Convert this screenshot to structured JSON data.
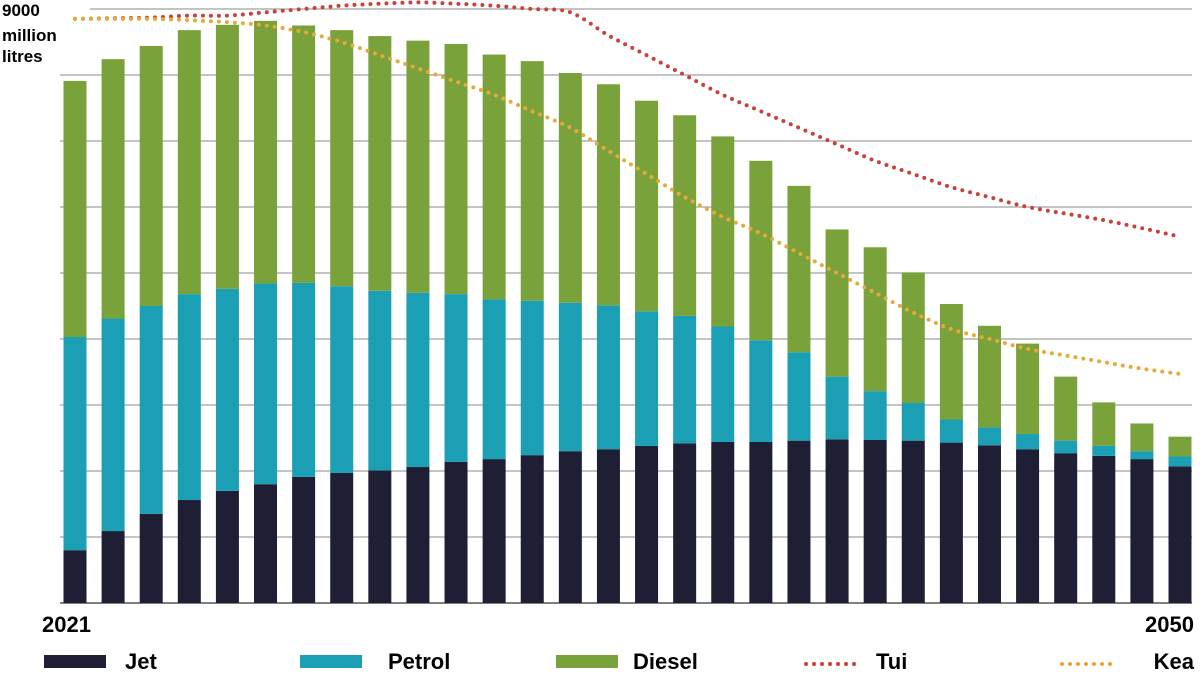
{
  "chart_data": {
    "type": "bar",
    "stacked": true,
    "ylabel_lines": [
      "9000",
      "million",
      "litres"
    ],
    "ylim": [
      0,
      9000
    ],
    "y_gridlines": [
      0,
      1000,
      2000,
      3000,
      4000,
      5000,
      6000,
      7000,
      8000,
      9000
    ],
    "grid": "horizontal",
    "x": [
      2021,
      2022,
      2023,
      2024,
      2025,
      2026,
      2027,
      2028,
      2029,
      2030,
      2031,
      2032,
      2033,
      2034,
      2035,
      2036,
      2037,
      2038,
      2039,
      2040,
      2041,
      2042,
      2043,
      2044,
      2045,
      2046,
      2047,
      2048,
      2049,
      2050
    ],
    "x_tick_labels": [
      {
        "x": 2021,
        "label": "2021"
      },
      {
        "x": 2050,
        "label": "2050"
      }
    ],
    "series": [
      {
        "name": "Jet",
        "kind": "bar",
        "color": "#1e1e35",
        "values": [
          800,
          1090,
          1350,
          1560,
          1700,
          1800,
          1910,
          1970,
          2010,
          2060,
          2140,
          2180,
          2240,
          2300,
          2330,
          2380,
          2420,
          2440,
          2440,
          2460,
          2480,
          2470,
          2460,
          2430,
          2390,
          2330,
          2270,
          2230,
          2180,
          2070
        ]
      },
      {
        "name": "Petrol",
        "kind": "bar",
        "color": "#1b9fb5",
        "values": [
          3230,
          3220,
          3150,
          3120,
          3060,
          3040,
          2940,
          2830,
          2720,
          2640,
          2540,
          2420,
          2340,
          2250,
          2180,
          2040,
          1930,
          1750,
          1540,
          1340,
          950,
          740,
          570,
          350,
          270,
          230,
          190,
          150,
          120,
          150
        ]
      },
      {
        "name": "Diesel",
        "kind": "bar",
        "color": "#7aa23b",
        "values": [
          3880,
          3930,
          3940,
          4000,
          4000,
          3980,
          3900,
          3880,
          3860,
          3820,
          3790,
          3710,
          3630,
          3480,
          3350,
          3190,
          3040,
          2880,
          2720,
          2520,
          2230,
          2180,
          1980,
          1750,
          1540,
          1370,
          970,
          660,
          420,
          300
        ]
      },
      {
        "name": "Tui",
        "kind": "line",
        "style": "dotted",
        "color": "#c8413a",
        "values": [
          8850,
          8860,
          8870,
          8900,
          8900,
          8950,
          9000,
          9050,
          9080,
          9100,
          9080,
          9050,
          9000,
          8950,
          8600,
          8300,
          8000,
          7700,
          7450,
          7200,
          6950,
          6700,
          6500,
          6300,
          6150,
          6000,
          5900,
          5800,
          5680,
          5550
        ]
      },
      {
        "name": "Kea",
        "kind": "line",
        "style": "dotted",
        "color": "#e8a83a",
        "values": [
          8850,
          8850,
          8850,
          8830,
          8800,
          8750,
          8650,
          8500,
          8300,
          8100,
          7900,
          7700,
          7450,
          7200,
          6850,
          6500,
          6150,
          5850,
          5600,
          5300,
          5000,
          4700,
          4400,
          4150,
          4000,
          3850,
          3750,
          3650,
          3550,
          3470
        ]
      }
    ],
    "legend": {
      "placement": "bottom"
    }
  }
}
